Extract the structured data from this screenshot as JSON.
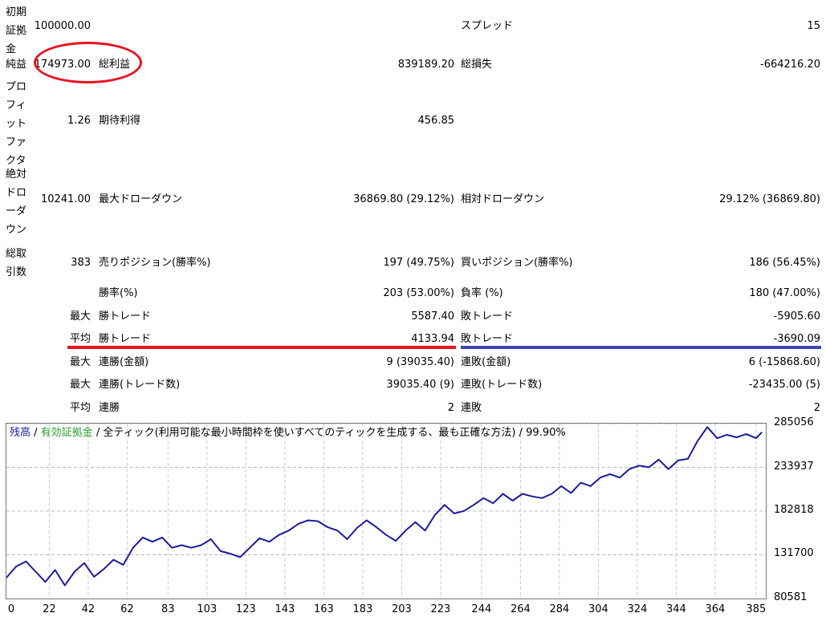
{
  "report": {
    "initial_deposit": {
      "label": "初期証拠金",
      "value": "100000.00"
    },
    "spread": {
      "label": "スプレッド",
      "value": "15"
    },
    "net_profit": {
      "label": "純益",
      "value": "174973.00"
    },
    "gross_profit": {
      "label": "総利益",
      "value": "839189.20"
    },
    "gross_loss": {
      "label": "総損失",
      "value": "-664216.20"
    },
    "profit_factor": {
      "label": "プロフィットファクタ",
      "value": "1.26"
    },
    "expected_payoff": {
      "label": "期待利得",
      "value": "456.85"
    },
    "absolute_drawdown": {
      "label": "絶対ドローダウン",
      "value": "10241.00"
    },
    "max_drawdown": {
      "label": "最大ドローダウン",
      "value": "36869.80 (29.12%)"
    },
    "relative_drawdown": {
      "label": "相対ドローダウン",
      "value": "29.12% (36869.80)"
    },
    "total_trades": {
      "label": "総取引数",
      "value": "383"
    },
    "short_positions": {
      "label": "売りポジション(勝率%)",
      "value": "197 (49.75%)"
    },
    "long_positions": {
      "label": "買いポジション(勝率%)",
      "value": "186 (56.45%)"
    },
    "win_rate": {
      "label": "勝率(%)",
      "value": "203 (53.00%)"
    },
    "loss_rate": {
      "label": "負率 (%)",
      "value": "180 (47.00%)"
    },
    "largest_win": {
      "prefix": "最大",
      "label": "勝トレード",
      "value": "5587.40"
    },
    "largest_loss": {
      "label": "敗トレード",
      "value": "-5905.60"
    },
    "average_win": {
      "prefix": "平均",
      "label": "勝トレード",
      "value": "4133.94"
    },
    "average_loss": {
      "label": "敗トレード",
      "value": "-3690.09"
    },
    "max_consec_wins_money": {
      "prefix": "最大",
      "label": "連勝(金額)",
      "value": "9 (39035.40)"
    },
    "max_consec_losses_money": {
      "label": "連敗(金額)",
      "value": "6 (-15868.60)"
    },
    "max_consec_profit_count": {
      "prefix": "最大",
      "label": "連勝(トレード数)",
      "value": "39035.40 (9)"
    },
    "max_consec_loss_count": {
      "label": "連敗(トレード数)",
      "value": "-23435.00 (5)"
    },
    "avg_consec_wins": {
      "prefix": "平均",
      "label": "連勝",
      "value": "2"
    },
    "avg_consec_losses": {
      "label": "連敗",
      "value": "2"
    }
  },
  "chart_legend": {
    "balance": "残高",
    "sep1": " / ",
    "equity": "有効証拠金",
    "sep2": " / ",
    "model": "全ティック(利用可能な最小時間枠を使いすべてのティックを生成する、最も正確な方法)",
    "sep3": " / ",
    "quality": "99.90%"
  },
  "colors": {
    "balance": "#1b1b9c",
    "equity": "#2aa02a",
    "highlight_red": "#e8141e",
    "highlight_blue": "#3c46b4"
  },
  "chart_data": {
    "type": "line",
    "xlabel": "",
    "ylabel": "",
    "xticks": [
      0,
      22,
      42,
      62,
      83,
      103,
      123,
      143,
      163,
      183,
      203,
      223,
      244,
      264,
      284,
      304,
      324,
      344,
      364,
      385
    ],
    "yticks": [
      80581,
      131700,
      182818,
      233937,
      285056
    ],
    "xlim": [
      0,
      390
    ],
    "ylim": [
      80581,
      285056
    ],
    "grid": true,
    "series": [
      {
        "name": "残高",
        "x": [
          0,
          5,
          10,
          15,
          20,
          25,
          30,
          35,
          40,
          45,
          50,
          55,
          60,
          65,
          70,
          75,
          80,
          85,
          90,
          95,
          100,
          105,
          110,
          115,
          120,
          125,
          130,
          135,
          140,
          145,
          150,
          155,
          160,
          165,
          170,
          175,
          180,
          185,
          190,
          195,
          200,
          205,
          210,
          215,
          220,
          225,
          230,
          235,
          240,
          245,
          250,
          255,
          260,
          265,
          270,
          275,
          280,
          285,
          290,
          295,
          300,
          305,
          310,
          315,
          320,
          325,
          330,
          335,
          340,
          345,
          350,
          355,
          360,
          365,
          370,
          375,
          380,
          385,
          388
        ],
        "values": [
          105000,
          118000,
          124000,
          112000,
          100000,
          114000,
          96000,
          112000,
          122000,
          106000,
          115000,
          126000,
          120000,
          140000,
          152000,
          147000,
          152000,
          140000,
          143000,
          140000,
          143000,
          150000,
          136000,
          133000,
          129000,
          140000,
          151000,
          147000,
          155000,
          160000,
          168000,
          172000,
          171000,
          164000,
          160000,
          150000,
          163000,
          172000,
          164000,
          155000,
          148000,
          160000,
          170000,
          160000,
          178000,
          190000,
          180000,
          183000,
          190000,
          198000,
          192000,
          203000,
          195000,
          203000,
          200000,
          198000,
          203000,
          212000,
          204000,
          216000,
          212000,
          222000,
          226000,
          222000,
          232000,
          236000,
          234000,
          243000,
          232000,
          242000,
          244000,
          265000,
          281000,
          268000,
          272000,
          269000,
          273000,
          268000,
          275000
        ]
      }
    ]
  }
}
